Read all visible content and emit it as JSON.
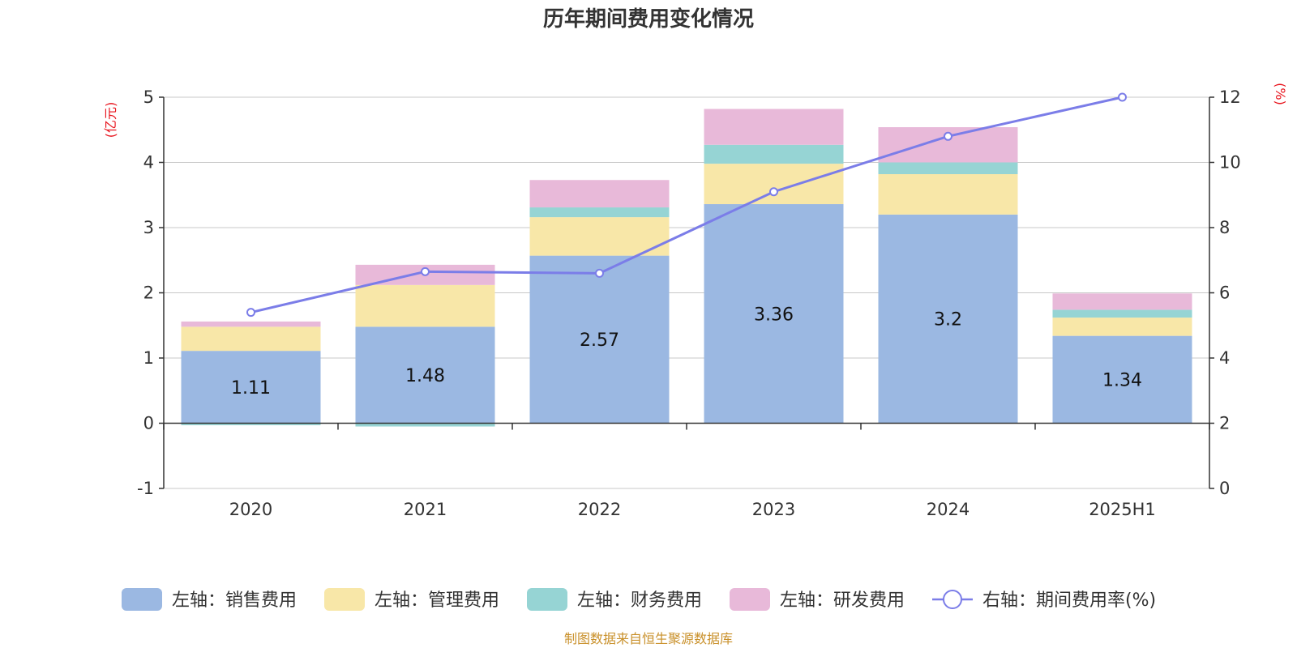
{
  "chart_data": {
    "type": "bar",
    "stacked": true,
    "title": "历年期间费用变化情况",
    "categories": [
      "2020",
      "2021",
      "2022",
      "2023",
      "2024",
      "2025H1"
    ],
    "left_axis": {
      "unit": "(亿元)",
      "min": -1,
      "max": 5,
      "ticks": [
        -1,
        0,
        1,
        2,
        3,
        4,
        5
      ]
    },
    "right_axis": {
      "unit": "(%)",
      "min": 0,
      "max": 12,
      "ticks": [
        0,
        2,
        4,
        6,
        8,
        10,
        12
      ]
    },
    "series": [
      {
        "name": "左轴：销售费用",
        "axis": "left",
        "kind": "bar",
        "color": "#9bb8e2",
        "values": [
          1.11,
          1.48,
          2.57,
          3.36,
          3.2,
          1.34
        ],
        "labels": [
          "1.11",
          "1.48",
          "2.57",
          "3.36",
          "3.2",
          "1.34"
        ]
      },
      {
        "name": "左轴：管理费用",
        "axis": "left",
        "kind": "bar",
        "color": "#f8e7a8",
        "values": [
          0.37,
          0.64,
          0.59,
          0.62,
          0.62,
          0.28
        ]
      },
      {
        "name": "左轴：财务费用",
        "axis": "left",
        "kind": "bar",
        "color": "#96d4d4",
        "values": [
          -0.03,
          -0.05,
          0.15,
          0.29,
          0.18,
          0.12
        ]
      },
      {
        "name": "左轴：研发费用",
        "axis": "left",
        "kind": "bar",
        "color": "#e8b9d9",
        "values": [
          0.08,
          0.31,
          0.42,
          0.55,
          0.54,
          0.25
        ]
      },
      {
        "name": "右轴：期间费用率(%)",
        "axis": "right",
        "kind": "line",
        "color": "#7b7de8",
        "values": [
          5.4,
          6.65,
          6.6,
          9.1,
          10.8,
          12.0
        ]
      }
    ],
    "grid": true,
    "legend_position": "bottom"
  },
  "source_note": "制图数据来自恒生聚源数据库"
}
